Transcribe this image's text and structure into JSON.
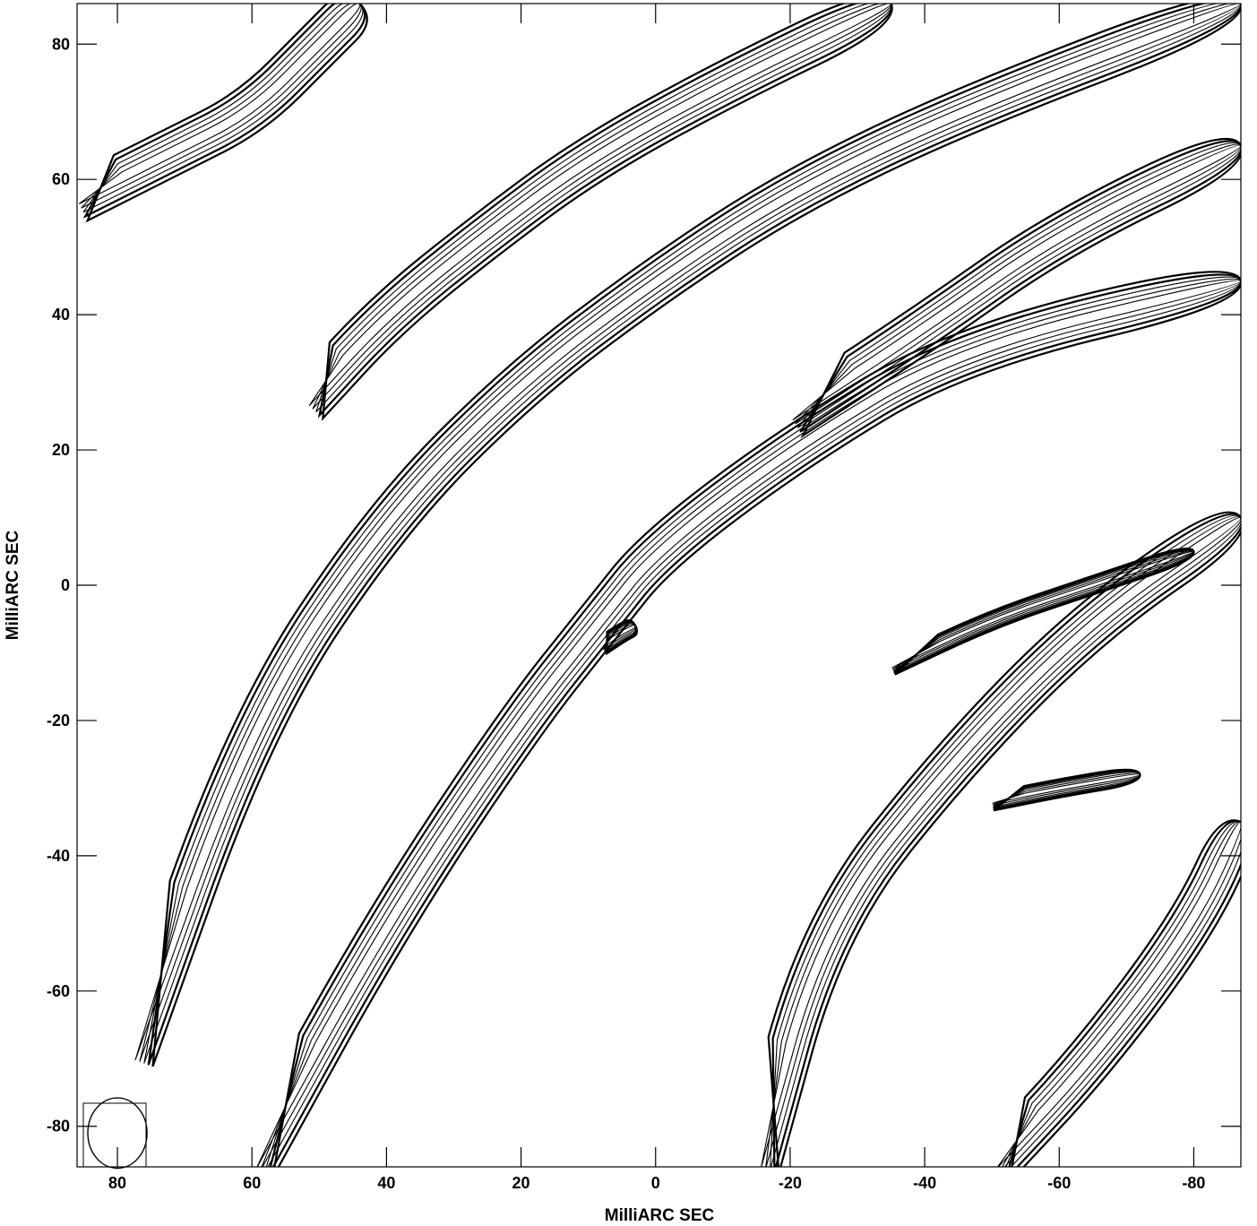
{
  "chart_data": {
    "type": "contour",
    "title": "",
    "xlabel": "MilliARC SEC",
    "ylabel": "MilliARC SEC",
    "xlim": [
      86,
      -87
    ],
    "ylim": [
      -86,
      86
    ],
    "x_reversed": true,
    "xticks": [
      80,
      60,
      40,
      20,
      0,
      -20,
      -40,
      -60,
      -80
    ],
    "xtick_labels": [
      "80",
      "60",
      "40",
      "20",
      "0",
      "-20",
      "-40",
      "-60",
      "-80"
    ],
    "yticks": [
      80,
      60,
      40,
      20,
      0,
      -20,
      -40,
      -60,
      -80
    ],
    "ytick_labels": [
      "80",
      "60",
      "40",
      "20",
      "0",
      "-20",
      "-40",
      "-60",
      "-80"
    ],
    "grid": false,
    "beam": {
      "center": [
        80,
        -81
      ],
      "major_axis": 5.2,
      "minor_axis": 4.4,
      "corner": "bottom-left"
    },
    "features": [
      {
        "name": "upper-left-ridge",
        "path": [
          [
            86,
            57
          ],
          [
            72,
            64
          ],
          [
            60,
            70
          ],
          [
            50,
            80
          ],
          [
            44,
            86
          ]
        ]
      },
      {
        "name": "upper-band",
        "path": [
          [
            52,
            27
          ],
          [
            40,
            40
          ],
          [
            25,
            52
          ],
          [
            10,
            63
          ],
          [
            -10,
            74
          ],
          [
            -35,
            86
          ]
        ]
      },
      {
        "name": "middle-band",
        "path": [
          [
            78,
            -70
          ],
          [
            60,
            -20
          ],
          [
            40,
            10
          ],
          [
            20,
            30
          ],
          [
            0,
            45
          ],
          [
            -20,
            58
          ],
          [
            -45,
            70
          ],
          [
            -87,
            86
          ]
        ]
      },
      {
        "name": "core-band",
        "path": [
          [
            60,
            -86
          ],
          [
            40,
            -50
          ],
          [
            20,
            -20
          ],
          [
            8,
            -5
          ],
          [
            0,
            5
          ],
          [
            -20,
            20
          ],
          [
            -45,
            35
          ],
          [
            -87,
            45
          ]
        ]
      },
      {
        "name": "right-band",
        "path": [
          [
            -20,
            25
          ],
          [
            -40,
            38
          ],
          [
            -60,
            52
          ],
          [
            -87,
            65
          ]
        ]
      },
      {
        "name": "lower-right-band",
        "path": [
          [
            -15,
            -86
          ],
          [
            -25,
            -50
          ],
          [
            -45,
            -25
          ],
          [
            -65,
            -5
          ],
          [
            -87,
            10
          ]
        ]
      },
      {
        "name": "far-lower-right-band",
        "path": [
          [
            -50,
            -86
          ],
          [
            -65,
            -70
          ],
          [
            -80,
            -50
          ],
          [
            -87,
            -35
          ]
        ]
      },
      {
        "name": "inner-spur-1",
        "path": [
          [
            -35,
            -12
          ],
          [
            -50,
            -5
          ],
          [
            -65,
            0
          ],
          [
            -80,
            5
          ]
        ]
      },
      {
        "name": "inner-spur-2",
        "path": [
          [
            -50,
            -32
          ],
          [
            -60,
            -30
          ],
          [
            -72,
            -28
          ]
        ]
      },
      {
        "name": "core-knot-1",
        "path": [
          [
            8,
            -9
          ],
          [
            5,
            -7
          ],
          [
            3,
            -6
          ]
        ]
      }
    ],
    "levels_drawn": 5
  }
}
